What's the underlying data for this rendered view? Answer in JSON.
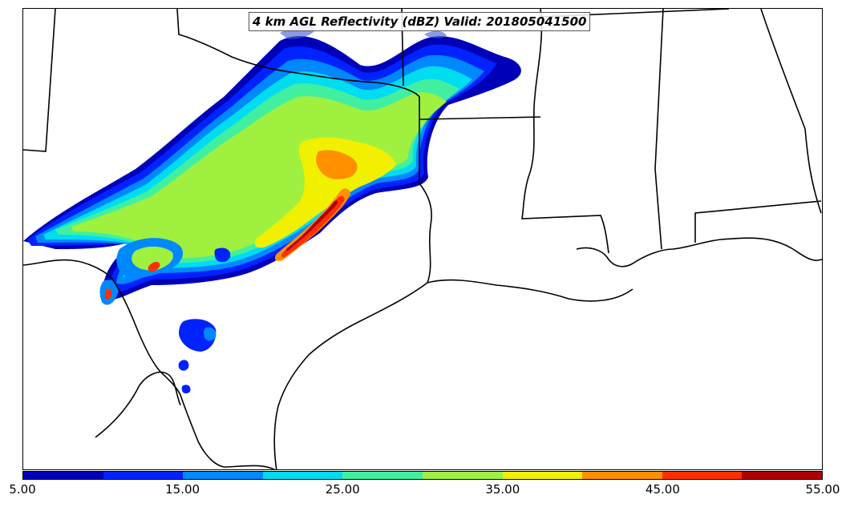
{
  "title": "4 km AGL Reflectivity (dBZ) Valid: 201805041500",
  "colorbar": {
    "colors": [
      "#0000b8",
      "#0022ff",
      "#0088ff",
      "#00dcf0",
      "#40f0a0",
      "#a0f040",
      "#f0f000",
      "#ff9000",
      "#ff3000",
      "#b00000"
    ],
    "labels": [
      "5.00",
      "15.00",
      "25.00",
      "35.00",
      "45.00",
      "55.00"
    ]
  },
  "icons": [
    "state-boundaries",
    "coastline",
    "reflectivity-contours"
  ]
}
